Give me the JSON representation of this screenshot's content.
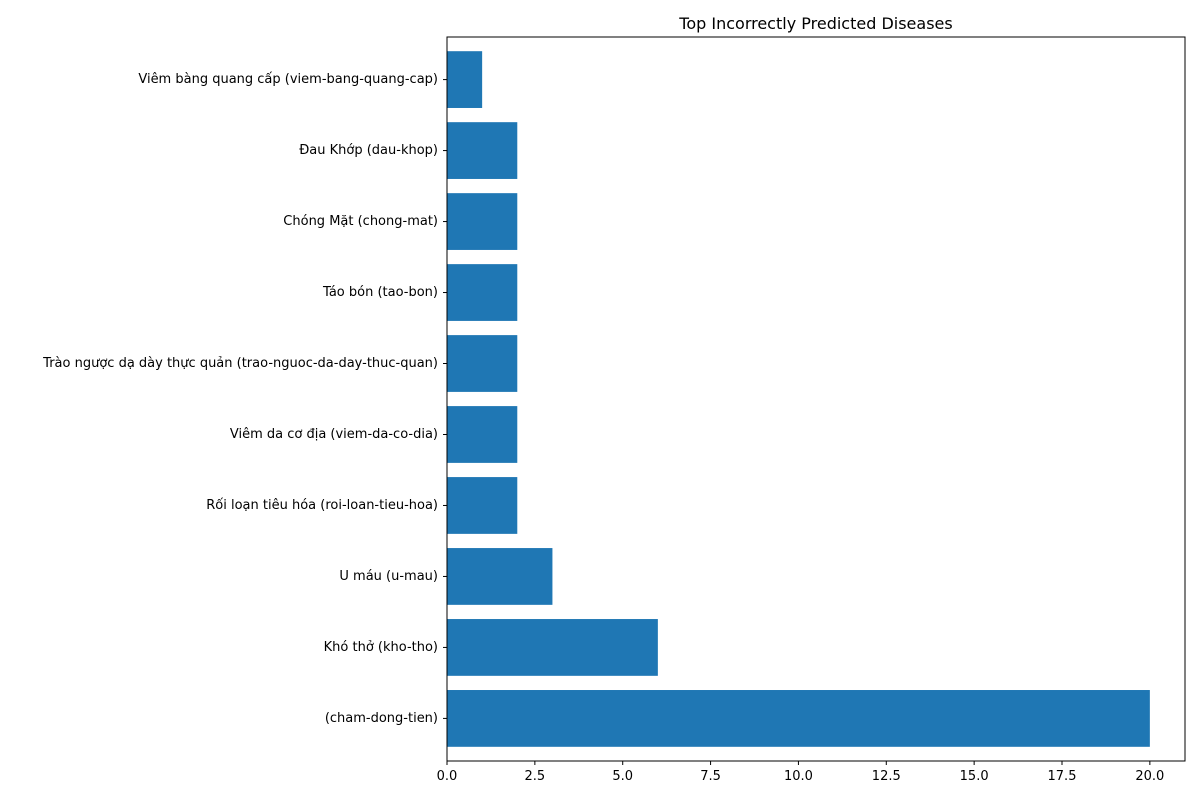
{
  "chart_data": {
    "type": "bar",
    "orientation": "horizontal",
    "title": "Top Incorrectly Predicted Diseases",
    "xlabel": "",
    "ylabel": "",
    "categories": [
      "(cham-dong-tien)",
      "Khó thở (kho-tho)",
      "U máu (u-mau)",
      "Rối loạn tiêu hóa (roi-loan-tieu-hoa)",
      "Viêm da cơ địa (viem-da-co-dia)",
      "Trào ngược dạ dày thực quản (trao-nguoc-da-day-thuc-quan)",
      "Táo bón (tao-bon)",
      "Chóng Mặt (chong-mat)",
      "Đau Khớp (dau-khop)",
      "Viêm bàng quang cấp (viem-bang-quang-cap)"
    ],
    "values": [
      20,
      6,
      3,
      2,
      2,
      2,
      2,
      2,
      2,
      1
    ],
    "xlim": [
      0,
      21
    ],
    "xticks": [
      0.0,
      2.5,
      5.0,
      7.5,
      10.0,
      12.5,
      15.0,
      17.5,
      20.0
    ],
    "xtick_labels": [
      "0.0",
      "2.5",
      "5.0",
      "7.5",
      "10.0",
      "12.5",
      "15.0",
      "17.5",
      "20.0"
    ],
    "grid": false,
    "legend": "none",
    "bar_color": "#1f77b4"
  }
}
